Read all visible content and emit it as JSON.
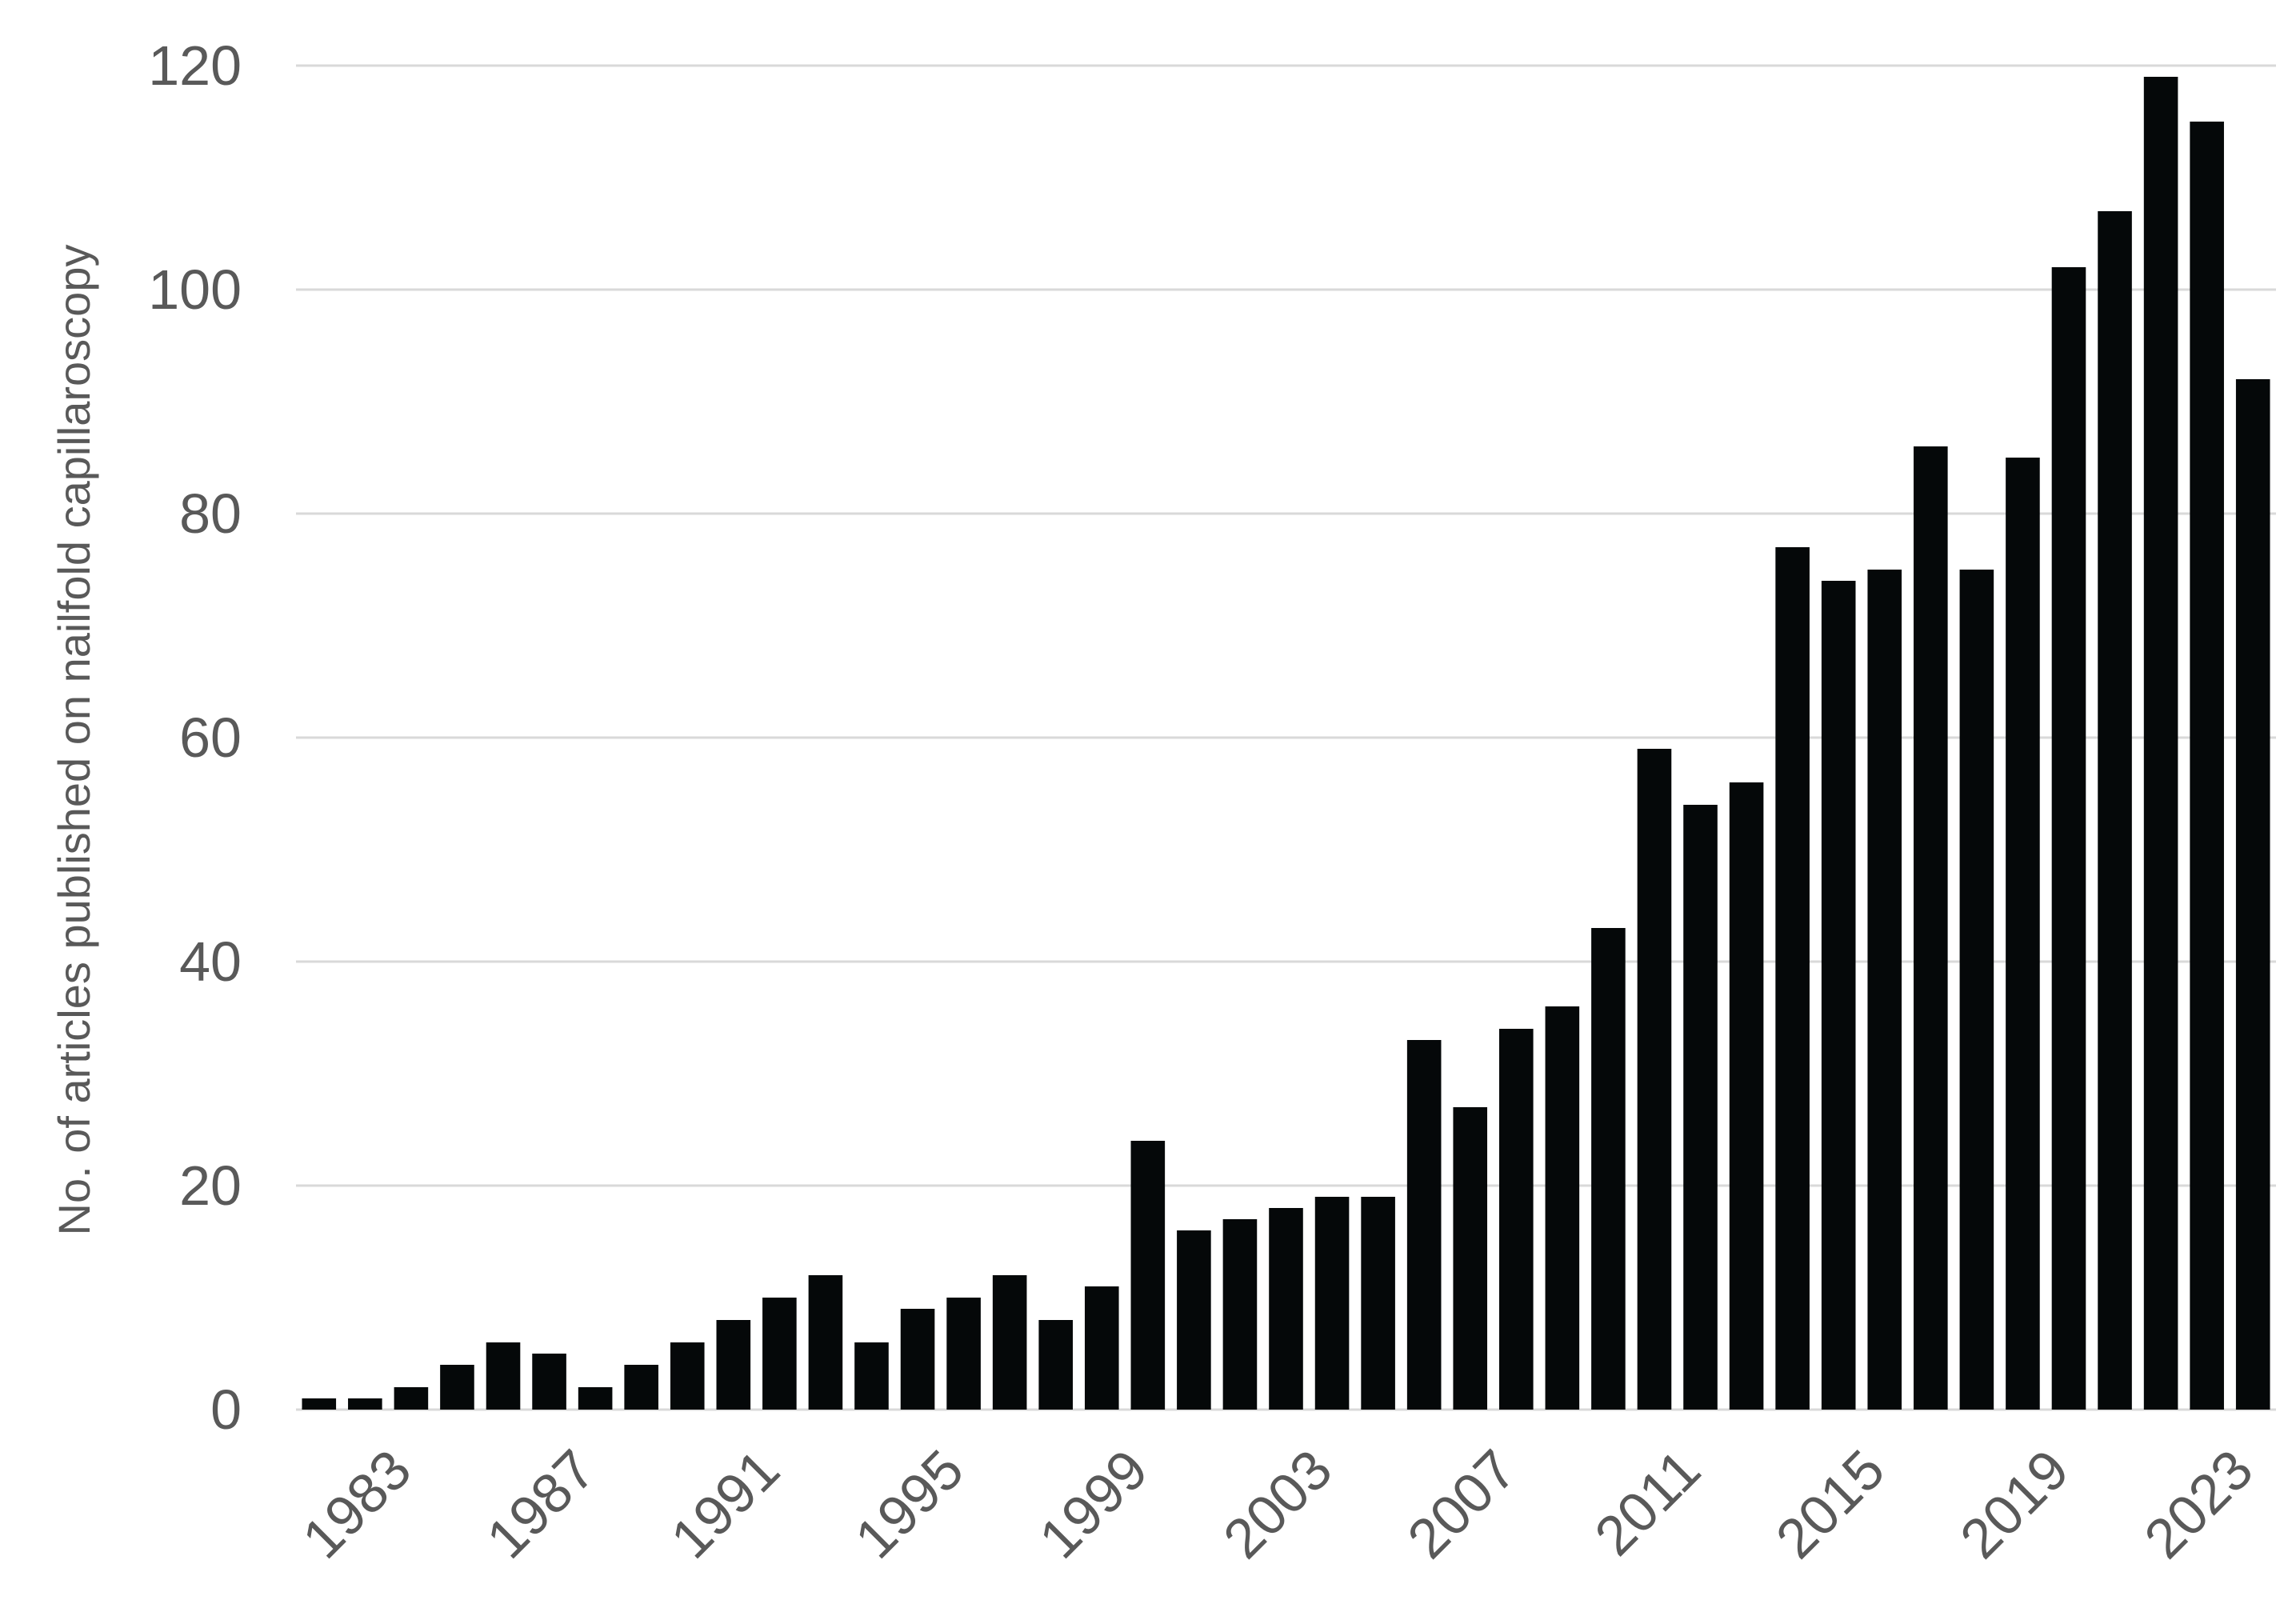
{
  "chart_data": {
    "type": "bar",
    "title": "",
    "xlabel": "",
    "ylabel": "No. of articles published on nailfold capillaroscopy",
    "ylim": [
      0,
      120
    ],
    "yticks": [
      0,
      20,
      40,
      60,
      80,
      100,
      120
    ],
    "grid": true,
    "legend": "none",
    "bar_color": "#050809",
    "grid_color": "#d9d9d9",
    "text_color": "#595959",
    "categories": [
      "1981",
      "1982",
      "1983",
      "1984",
      "1985",
      "1986",
      "1987",
      "1988",
      "1989",
      "1990",
      "1991",
      "1992",
      "1993",
      "1994",
      "1995",
      "1996",
      "1997",
      "1998",
      "1999",
      "2000",
      "2001",
      "2002",
      "2003",
      "2004",
      "2005",
      "2006",
      "2007",
      "2008",
      "2009",
      "2010",
      "2011",
      "2012",
      "2013",
      "2014",
      "2015",
      "2016",
      "2017",
      "2018",
      "2019",
      "2020",
      "2021",
      "2022",
      "2023"
    ],
    "xtick_labels_shown": [
      "1983",
      "1987",
      "1991",
      "1995",
      "1999",
      "2003",
      "2007",
      "2011",
      "2015",
      "2019",
      "2023"
    ],
    "values": [
      1,
      1,
      2,
      4,
      6,
      5,
      2,
      4,
      6,
      8,
      10,
      12,
      6,
      9,
      10,
      12,
      8,
      11,
      24,
      16,
      17,
      18,
      19,
      19,
      33,
      27,
      34,
      36,
      43,
      59,
      54,
      56,
      77,
      74,
      75,
      86,
      75,
      85,
      102,
      107,
      119,
      115,
      92
    ]
  }
}
